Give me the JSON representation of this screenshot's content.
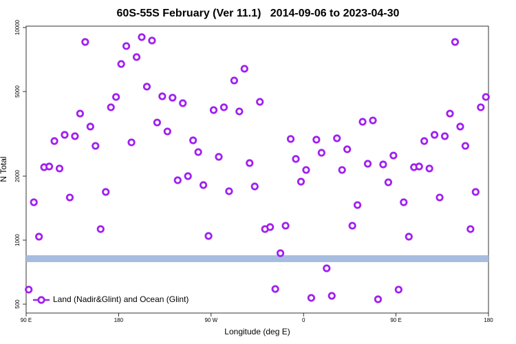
{
  "chart_data": {
    "type": "scatter",
    "title": "60S-55S February (Ver 11.1)   2014-09-06 to 2023-04-30",
    "xlabel": "Longitude (deg E)",
    "ylabel": "N Total",
    "xlim": [
      90,
      540
    ],
    "ylim": [
      454,
      10150
    ],
    "log_y": true,
    "legend": "bottom-left",
    "xticks": [
      {
        "value": 90,
        "label": "90 E"
      },
      180,
      {
        "value": 270,
        "label": "90 W"
      },
      {
        "value": 360,
        "label": "0"
      },
      {
        "value": 450,
        "label": "90 E"
      },
      {
        "value": 540,
        "label": "180"
      }
    ],
    "yticks": [
      500,
      1000,
      2000,
      5000,
      10000
    ],
    "hline": {
      "value": 818,
      "color": "#a7bde0"
    },
    "series": [
      {
        "name": "Land (Nadir&Glint) and Ocean (Glint)",
        "color": "#a020f0",
        "x": [
          92.5,
          97.5,
          102.5,
          107.5,
          112.5,
          117.5,
          122.5,
          127.5,
          132.5,
          137.5,
          142.5,
          147.5,
          152.5,
          157.5,
          162.5,
          167.5,
          172.5,
          177.5,
          182.5,
          187.5,
          192.5,
          197.5,
          202.5,
          207.5,
          212.5,
          217.5,
          222.5,
          227.5,
          232.5,
          237.5,
          242.5,
          247.5,
          252.5,
          257.5,
          262.5,
          267.5,
          272.5,
          277.5,
          282.5,
          287.5,
          292.5,
          297.5,
          302.5,
          307.5,
          312.5,
          317.5,
          322.5,
          327.5,
          332.5,
          337.5,
          342.5,
          347.5,
          352.5,
          357.5,
          362.5,
          367.5,
          372.5,
          377.5,
          382.5,
          387.5,
          392.5,
          397.5,
          402.5,
          407.5,
          412.5,
          417.5,
          422.5,
          427.5,
          432.5,
          437.5,
          442.5,
          447.5,
          452.5,
          457.5,
          462.5,
          467.5,
          472.5,
          477.5,
          482.5,
          487.5,
          492.5,
          497.5,
          502.5,
          507.5,
          512.5,
          517.5,
          522.5,
          527.5,
          532.5,
          537.5
        ],
        "values": [
          585,
          1507,
          1038,
          2203,
          2220,
          2924,
          2172,
          3127,
          1587,
          3083,
          3938,
          8551,
          3420,
          2775,
          1127,
          1685,
          4214,
          4713,
          6736,
          8180,
          2882,
          7261,
          9014,
          5271,
          8683,
          3575,
          4747,
          3245,
          4677,
          1913,
          4406,
          2000,
          2946,
          2595,
          1815,
          1046,
          4090,
          2464,
          4214,
          1698,
          5633,
          4030,
          6397,
          2304,
          1788,
          4471,
          1127,
          1152,
          589,
          868,
          1169,
          2991,
          2409,
          1884,
          2138,
          535,
          2968,
          2576,
          737,
          547,
          3013,
          2138,
          2675,
          1169,
          1462,
          3602,
          2287,
          3656,
          527,
          2270,
          1870,
          2500,
          585,
          1507,
          1038,
          2203,
          2220,
          2924,
          2172,
          3127,
          1587,
          3083,
          3938,
          8551,
          3420,
          2775,
          1127,
          1685,
          4214,
          4713
        ]
      }
    ]
  }
}
